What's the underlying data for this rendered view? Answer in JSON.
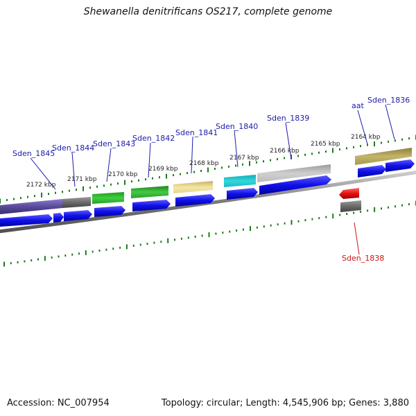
{
  "title": "Shewanella denitrificans OS217, complete genome",
  "footer": {
    "accession": "Accession: NC_007954",
    "summary": "Topology: circular; Length: 4,545,906 bp; Genes: 3,880"
  },
  "ruler_labels": [
    "2172 kbp",
    "2171 kbp",
    "2170 kbp",
    "2169 kbp",
    "2168 kbp",
    "2167 kbp",
    "2166 kbp",
    "2165 kbp",
    "2164 kbp"
  ],
  "gene_labels": [
    "Sden_1845",
    "Sden_1844",
    "Sden_1843",
    "Sden_1842",
    "Sden_1841",
    "Sden_1840",
    "Sden_1839",
    "aat",
    "Sden_1836",
    "Sden_1838"
  ],
  "colors": {
    "cds": "#1010e8",
    "rna": "#e81010",
    "tick": "#1e7a1e",
    "backbone": "#8a8a8a",
    "label": "#1a1aa8",
    "rna_label": "#d11111"
  }
}
